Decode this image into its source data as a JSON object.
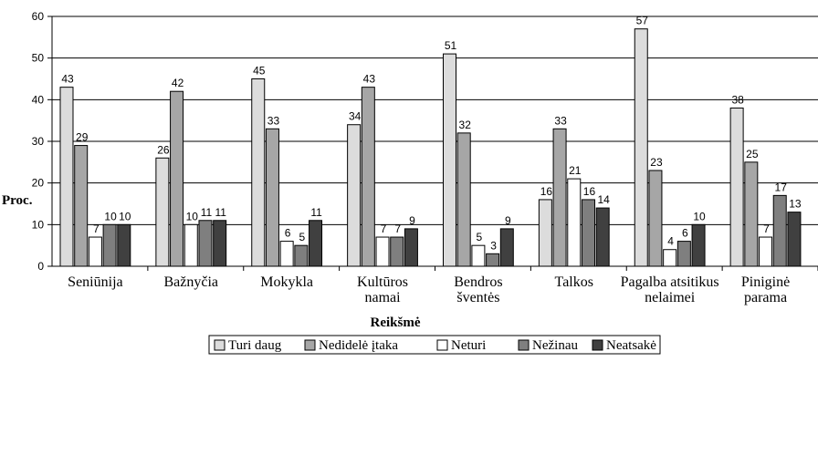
{
  "chart_data": {
    "type": "bar",
    "categories": [
      [
        "Seniūnija"
      ],
      [
        "Bažnyčia"
      ],
      [
        "Mokykla"
      ],
      [
        "Kultūros",
        "namai"
      ],
      [
        "Bendros",
        "šventės"
      ],
      [
        "Talkos"
      ],
      [
        "Pagalba atsitikus",
        "nelaimei"
      ],
      [
        "Piniginė",
        "parama"
      ]
    ],
    "series": [
      {
        "name": "Turi daug",
        "color": "#dcdcdc",
        "values": [
          43,
          26,
          45,
          34,
          51,
          16,
          57,
          38
        ]
      },
      {
        "name": "Nedidelė įtaka",
        "color": "#a6a6a6",
        "values": [
          29,
          42,
          33,
          43,
          32,
          33,
          23,
          25
        ]
      },
      {
        "name": "Neturi",
        "color": "#ffffff",
        "values": [
          7,
          10,
          6,
          7,
          5,
          21,
          4,
          7
        ]
      },
      {
        "name": "Nežinau",
        "color": "#7f7f7f",
        "values": [
          10,
          11,
          5,
          7,
          3,
          16,
          6,
          17
        ]
      },
      {
        "name": "Neatsakė",
        "color": "#404040",
        "values": [
          10,
          11,
          11,
          9,
          9,
          14,
          10,
          13
        ]
      }
    ],
    "xlabel": "Reikšmė",
    "ylabel": "Proc.",
    "ylim": [
      0,
      60
    ],
    "yticks": [
      0,
      10,
      20,
      30,
      40,
      50,
      60
    ],
    "grid": true,
    "legend": "bottom"
  }
}
